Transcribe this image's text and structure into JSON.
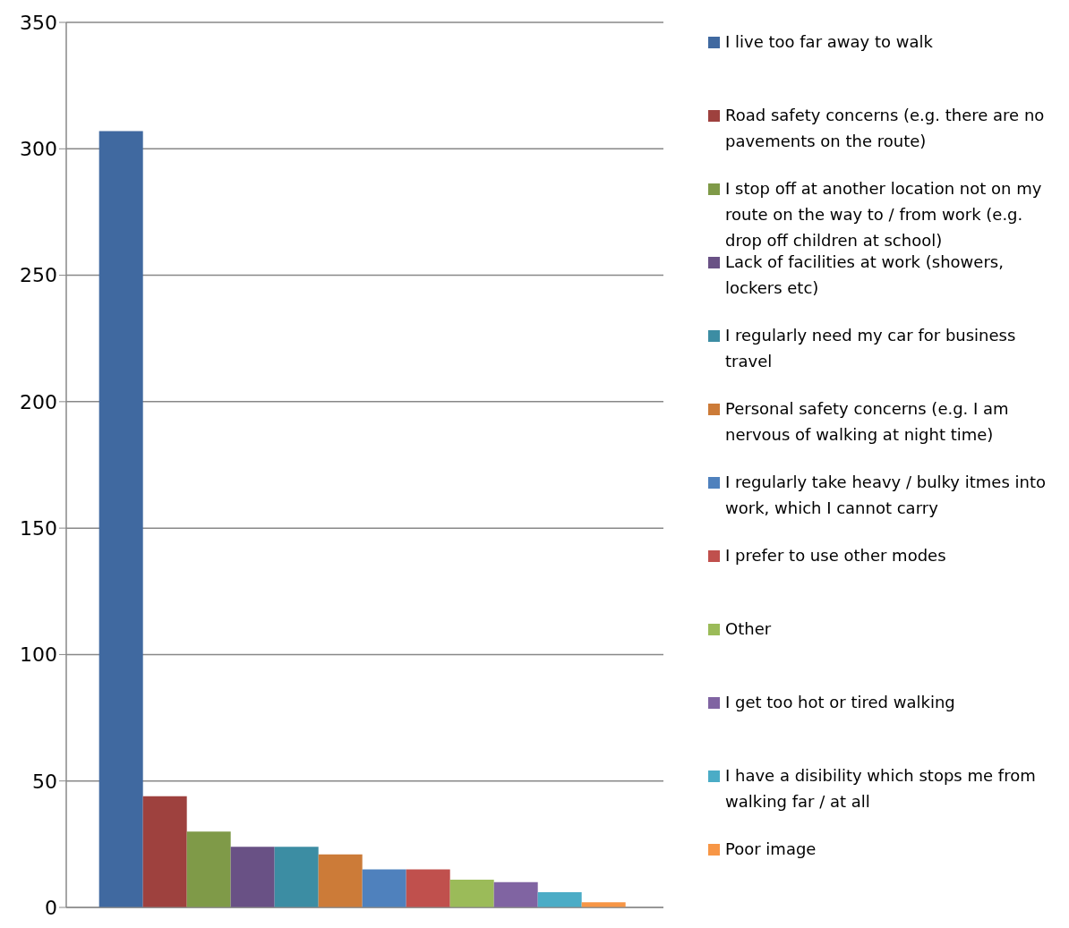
{
  "chart_data": {
    "type": "bar",
    "categories": [
      null
    ],
    "series": [
      {
        "name": "I live too far away to walk",
        "color": "#4069a0",
        "values": [
          307
        ]
      },
      {
        "name": "Road safety concerns (e.g. there are no pavements on the route)",
        "color": "#9e413e",
        "values": [
          44
        ]
      },
      {
        "name": "I stop off at another location not on my route on the way to / from work (e.g. drop off children at school)",
        "color": "#7f9a48",
        "values": [
          30
        ]
      },
      {
        "name": "Lack of facilities at work (showers, lockers etc)",
        "color": "#695185",
        "values": [
          24
        ]
      },
      {
        "name": "I regularly need my car for business travel",
        "color": "#3c8da3",
        "values": [
          24
        ]
      },
      {
        "name": "Personal safety concerns (e.g. I am nervous of walking at night time)",
        "color": "#cc7b38",
        "values": [
          21
        ]
      },
      {
        "name": "I regularly take heavy / bulky itmes into work, which I cannot carry",
        "color": "#4f81bd",
        "values": [
          15
        ]
      },
      {
        "name": "I prefer to use other modes",
        "color": "#c0504d",
        "values": [
          15
        ]
      },
      {
        "name": "Other",
        "color": "#9bbb59",
        "values": [
          11
        ]
      },
      {
        "name": "I get too hot or tired walking",
        "color": "#8064a2",
        "values": [
          10
        ]
      },
      {
        "name": "I have a disibility which stops me from walking far / at all",
        "color": "#4bacc6",
        "values": [
          6
        ]
      },
      {
        "name": "Poor image",
        "color": "#f79646",
        "values": [
          2
        ]
      }
    ],
    "ylim": [
      0,
      350
    ],
    "yticks": [
      0,
      50,
      100,
      150,
      200,
      250,
      300,
      350
    ],
    "grid": "y",
    "legend": "right"
  }
}
